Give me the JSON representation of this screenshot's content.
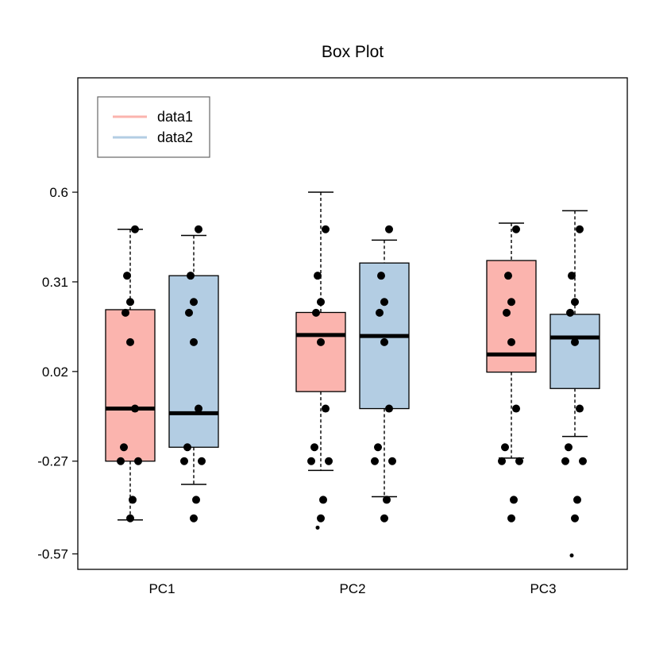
{
  "chart_data": {
    "type": "box",
    "title": "Box Plot",
    "xlabel": "",
    "ylabel": "",
    "categories": [
      "PC1",
      "PC2",
      "PC3"
    ],
    "y_ticks": [
      "0.6",
      "0.31",
      "0.02",
      "-0.27",
      "-0.57"
    ],
    "y_tick_values": [
      0.6,
      0.31,
      0.02,
      -0.27,
      -0.57
    ],
    "ylim": [
      -0.62,
      0.97
    ],
    "legend": {
      "position": "top-left"
    },
    "grid": false,
    "series": [
      {
        "name": "data1",
        "color": "#fbb4ae",
        "legend_color": "#fbb4ae",
        "boxes": [
          {
            "category": "PC1",
            "whisker_low": -0.46,
            "q1": -0.27,
            "median": -0.1,
            "q3": 0.22,
            "whisker_high": 0.48
          },
          {
            "category": "PC2",
            "whisker_low": -0.3,
            "q1": -0.045,
            "median": 0.138,
            "q3": 0.211,
            "whisker_high": 0.6
          },
          {
            "category": "PC3",
            "whisker_low": -0.26,
            "q1": 0.018,
            "median": 0.075,
            "q3": 0.379,
            "whisker_high": 0.5
          }
        ],
        "points": [
          {
            "category": "PC1",
            "values": [
              0.48,
              0.33,
              0.245,
              0.21,
              0.115,
              -0.1,
              -0.225,
              -0.27,
              -0.27,
              -0.395,
              -0.455
            ]
          },
          {
            "category": "PC2",
            "values": [
              0.48,
              0.33,
              0.245,
              0.21,
              0.115,
              -0.1,
              -0.225,
              -0.27,
              -0.27,
              -0.395,
              -0.455,
              -0.485
            ]
          },
          {
            "category": "PC3",
            "values": [
              0.48,
              0.33,
              0.245,
              0.21,
              0.115,
              -0.1,
              -0.225,
              -0.27,
              -0.27,
              -0.395,
              -0.455
            ]
          }
        ]
      },
      {
        "name": "data2",
        "color": "#b3cde3",
        "legend_color": "#b3cde3",
        "boxes": [
          {
            "category": "PC1",
            "whisker_low": -0.345,
            "q1": -0.225,
            "median": -0.115,
            "q3": 0.33,
            "whisker_high": 0.46
          },
          {
            "category": "PC2",
            "whisker_low": -0.385,
            "q1": -0.1,
            "median": 0.135,
            "q3": 0.371,
            "whisker_high": 0.445
          },
          {
            "category": "PC3",
            "whisker_low": -0.19,
            "q1": -0.035,
            "median": 0.13,
            "q3": 0.205,
            "whisker_high": 0.54
          }
        ],
        "points": [
          {
            "category": "PC1",
            "values": [
              0.48,
              0.33,
              0.245,
              0.21,
              0.115,
              -0.1,
              -0.225,
              -0.27,
              -0.27,
              -0.395,
              -0.455
            ]
          },
          {
            "category": "PC2",
            "values": [
              0.48,
              0.33,
              0.245,
              0.21,
              0.115,
              -0.1,
              -0.225,
              -0.27,
              -0.27,
              -0.395,
              -0.455
            ]
          },
          {
            "category": "PC3",
            "values": [
              0.48,
              0.33,
              0.245,
              0.21,
              0.115,
              -0.1,
              -0.225,
              -0.27,
              -0.27,
              -0.395,
              -0.455,
              -0.575
            ]
          }
        ]
      }
    ]
  }
}
